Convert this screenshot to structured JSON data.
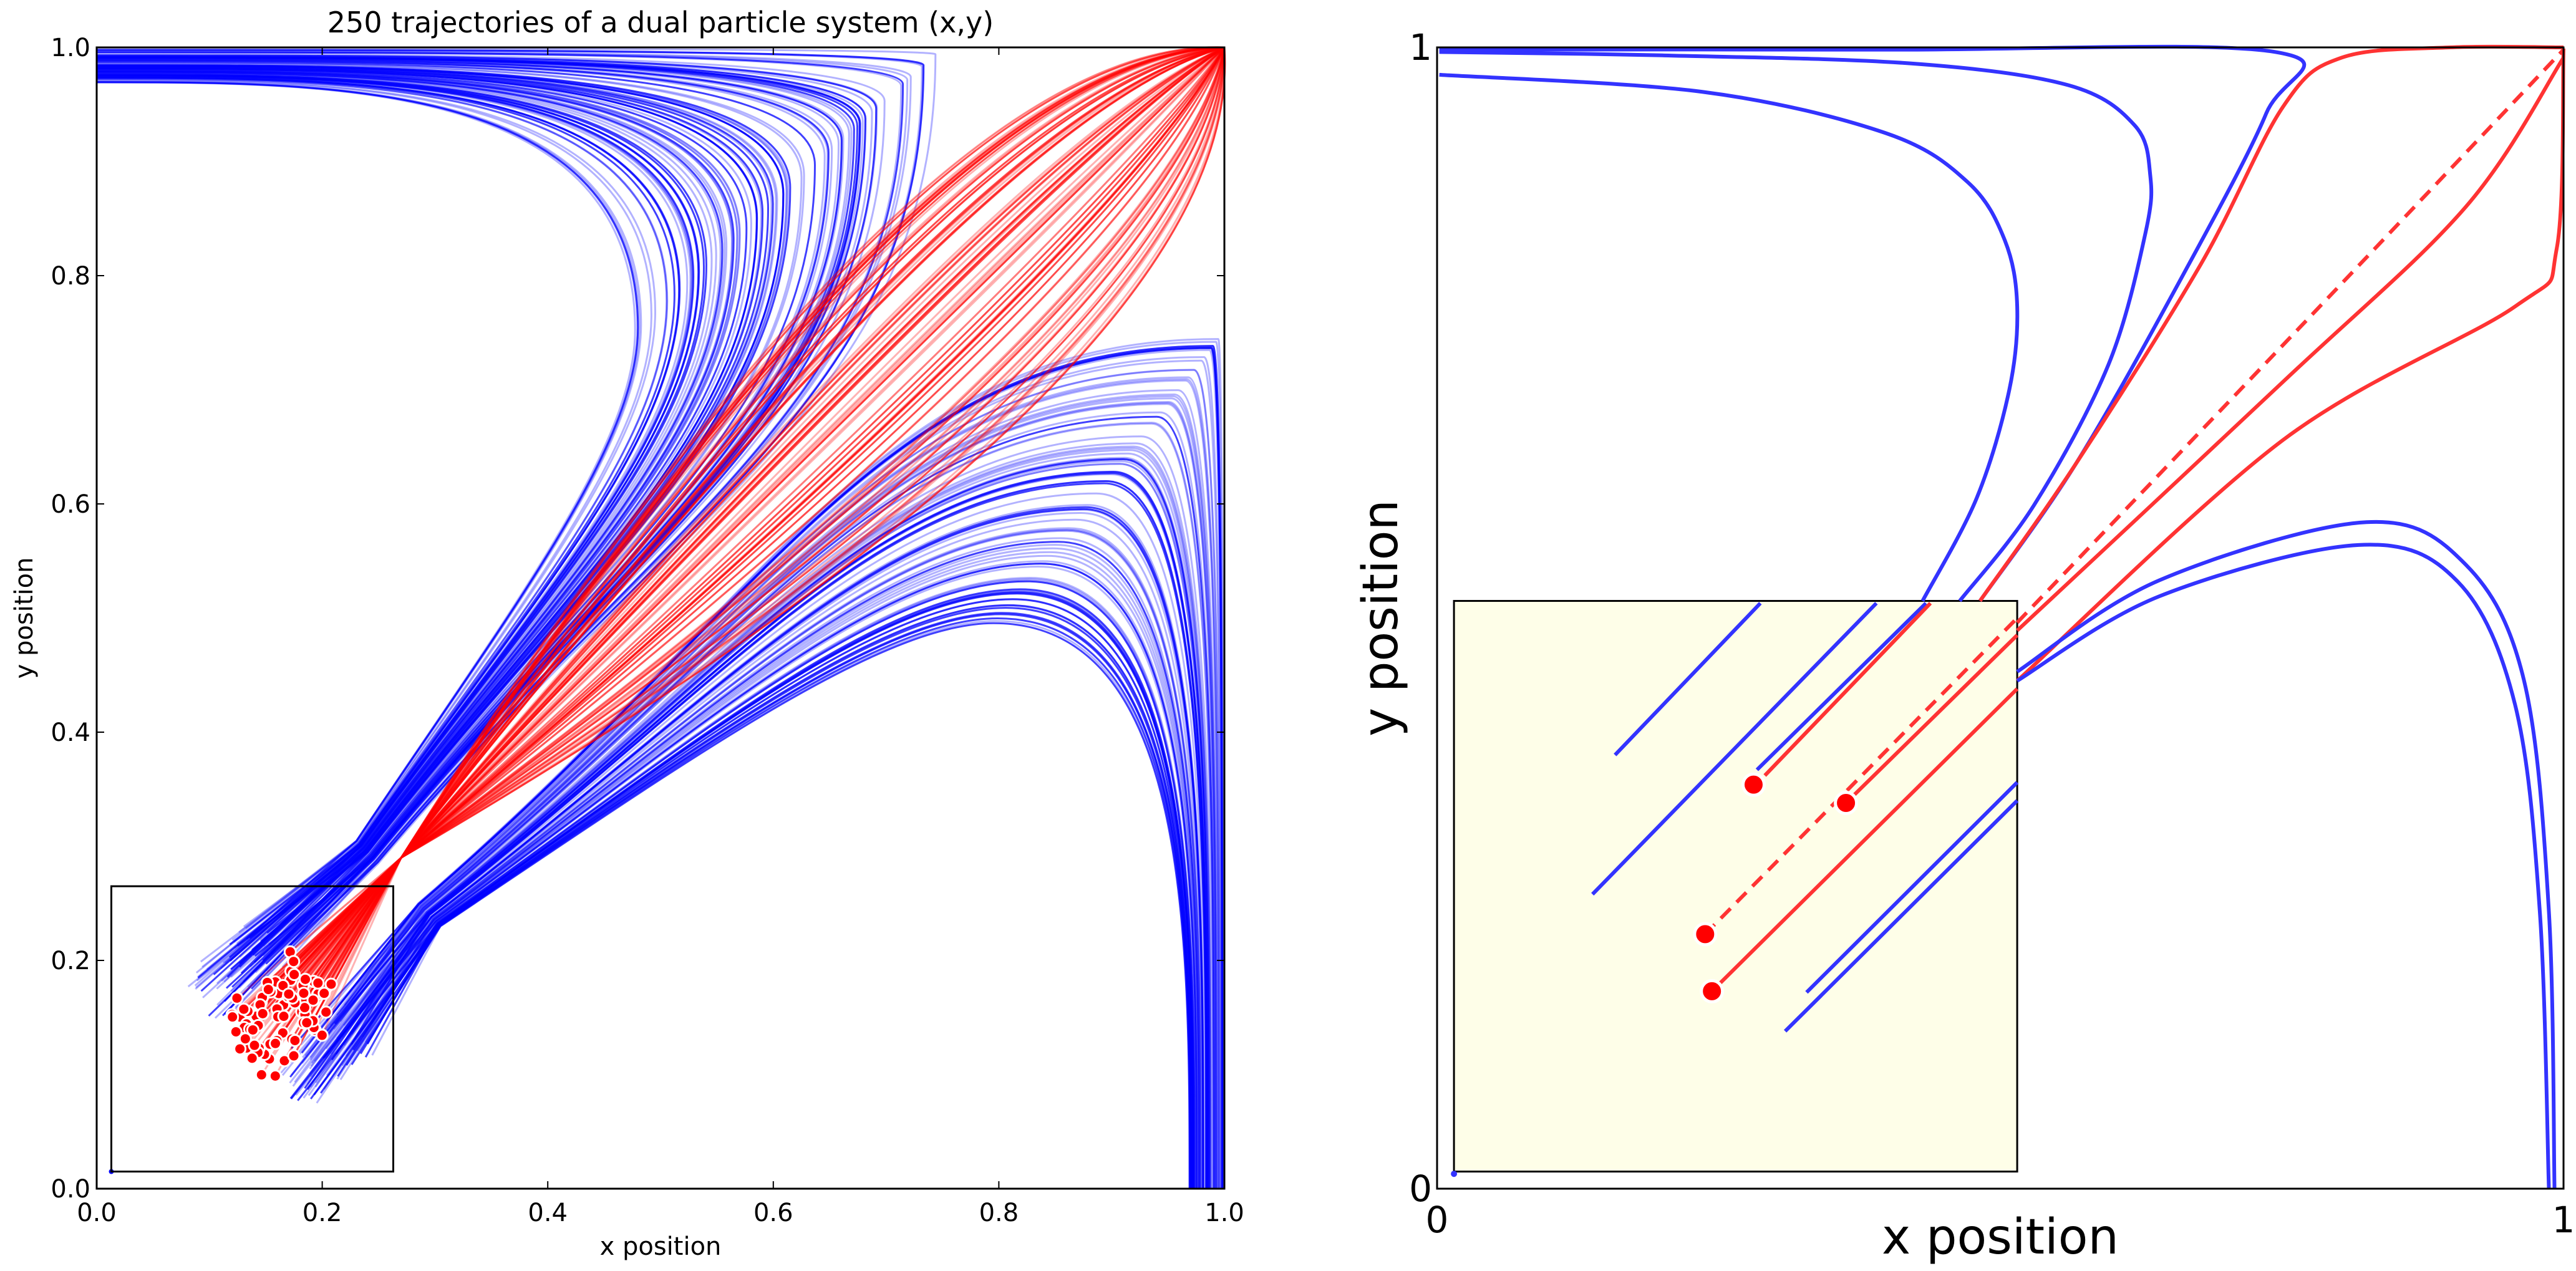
{
  "chart_data": [
    {
      "type": "line",
      "title": "250 trajectories of a dual particle system (x,y)",
      "xlabel": "x position",
      "ylabel": "y position",
      "xlim": [
        0.0,
        1.0
      ],
      "ylim": [
        0.0,
        1.0
      ],
      "xticks": [
        "0.0",
        "0.2",
        "0.4",
        "0.6",
        "0.8",
        "1.0"
      ],
      "yticks": [
        "0.0",
        "0.2",
        "0.4",
        "0.6",
        "0.8",
        "1.0"
      ],
      "grid": false,
      "n_trajectories": 250,
      "series_colors": {
        "attracted_to_corner": "#ff0000",
        "escaping": "#0000ff"
      },
      "start_marker_color": "#ff0000",
      "inset_box": {
        "x": [
          0.013,
          0.263
        ],
        "y": [
          0.015,
          0.265
        ]
      }
    },
    {
      "type": "line",
      "title": "",
      "xlabel": "x position",
      "ylabel": "y position",
      "xlim": [
        0,
        1
      ],
      "ylim": [
        0,
        1
      ],
      "xticks": [
        "0",
        "1"
      ],
      "yticks": [
        "0",
        "1"
      ],
      "grid": false,
      "inset_box": {
        "x": [
          0.015,
          0.515
        ],
        "y": [
          0.015,
          0.515
        ],
        "fill": "#fefee8"
      },
      "curves": [
        {
          "color": "#3333ff",
          "style": "solid",
          "points": [
            [
              0.431,
              0.515
            ],
            [
              0.479,
              0.605
            ],
            [
              0.508,
              0.7
            ],
            [
              0.515,
              0.773
            ],
            [
              0.504,
              0.831
            ],
            [
              0.471,
              0.882
            ],
            [
              0.398,
              0.925
            ],
            [
              0.236,
              0.961
            ],
            [
              0.002,
              0.976
            ]
          ]
        },
        {
          "color": "#3333ff",
          "style": "solid",
          "points": [
            [
              0.464,
              0.515
            ],
            [
              0.53,
              0.599
            ],
            [
              0.596,
              0.722
            ],
            [
              0.629,
              0.838
            ],
            [
              0.633,
              0.889
            ],
            [
              0.619,
              0.932
            ],
            [
              0.56,
              0.967
            ],
            [
              0.42,
              0.986
            ],
            [
              0.2,
              0.993
            ],
            [
              0.002,
              0.996
            ]
          ]
        },
        {
          "color": "#3333ff",
          "style": "solid",
          "points": [
            [
              0.482,
              0.515
            ],
            [
              0.567,
              0.635
            ],
            [
              0.663,
              0.802
            ],
            [
              0.736,
              0.942
            ],
            [
              0.744,
              0.996
            ],
            [
              0.4,
              0.998
            ],
            [
              0.002,
              0.998
            ]
          ]
        },
        {
          "color": "#ff3333",
          "style": "solid",
          "points": [
            [
              0.482,
              0.515
            ],
            [
              0.567,
              0.635
            ],
            [
              0.678,
              0.81
            ],
            [
              0.751,
              0.948
            ],
            [
              0.803,
              0.991
            ],
            [
              0.899,
              1.0
            ],
            [
              1.0,
              1.0
            ]
          ]
        },
        {
          "color": "#ff3333",
          "style": "dashed",
          "points": [
            [
              0.515,
              0.496
            ],
            [
              0.773,
              0.762
            ],
            [
              1.0,
              0.998
            ]
          ]
        },
        {
          "color": "#ff3333",
          "style": "solid",
          "points": [
            [
              0.515,
              0.489
            ],
            [
              0.751,
              0.707
            ],
            [
              0.913,
              0.86
            ],
            [
              1.0,
              0.991
            ]
          ]
        },
        {
          "color": "#ff3333",
          "style": "solid",
          "points": [
            [
              0.515,
              0.445
            ],
            [
              0.751,
              0.656
            ],
            [
              0.957,
              0.773
            ],
            [
              0.994,
              0.824
            ],
            [
              1.0,
              0.999
            ]
          ]
        },
        {
          "color": "#3333ff",
          "style": "solid",
          "points": [
            [
              0.515,
              0.453
            ],
            [
              0.641,
              0.533
            ],
            [
              0.825,
              0.584
            ],
            [
              0.913,
              0.547
            ],
            [
              0.965,
              0.445
            ],
            [
              0.987,
              0.243
            ],
            [
              0.992,
              0.0
            ]
          ]
        },
        {
          "color": "#3333ff",
          "style": "solid",
          "points": [
            [
              0.515,
              0.445
            ],
            [
              0.641,
              0.519
            ],
            [
              0.818,
              0.564
            ],
            [
              0.906,
              0.532
            ],
            [
              0.957,
              0.424
            ],
            [
              0.979,
              0.242
            ],
            [
              0.987,
              0.0
            ]
          ]
        }
      ],
      "inset_segments": [
        {
          "color": "#3333ff",
          "style": "solid",
          "points": [
            [
              0.158,
              0.38
            ],
            [
              0.287,
              0.513
            ]
          ]
        },
        {
          "color": "#3333ff",
          "style": "solid",
          "points": [
            [
              0.138,
              0.258
            ],
            [
              0.39,
              0.513
            ]
          ]
        },
        {
          "color": "#3333ff",
          "style": "solid",
          "points": [
            [
              0.284,
              0.367
            ],
            [
              0.434,
              0.513
            ]
          ]
        },
        {
          "color": "#ff3333",
          "style": "solid",
          "points": [
            [
              0.291,
              0.362
            ],
            [
              0.438,
              0.513
            ]
          ]
        },
        {
          "color": "#ff3333",
          "style": "solid",
          "points": [
            [
              0.363,
              0.338
            ],
            [
              0.515,
              0.485
            ]
          ]
        },
        {
          "color": "#ff3333",
          "style": "dashed",
          "points": [
            [
              0.238,
              0.223
            ],
            [
              0.515,
              0.5
            ]
          ]
        },
        {
          "color": "#ff3333",
          "style": "solid",
          "points": [
            [
              0.244,
              0.173
            ],
            [
              0.515,
              0.438
            ]
          ]
        },
        {
          "color": "#3333ff",
          "style": "solid",
          "points": [
            [
              0.328,
              0.172
            ],
            [
              0.515,
              0.356
            ]
          ]
        },
        {
          "color": "#3333ff",
          "style": "solid",
          "points": [
            [
              0.309,
              0.138
            ],
            [
              0.515,
              0.34
            ]
          ]
        }
      ],
      "start_points": [
        [
          0.281,
          0.354
        ],
        [
          0.363,
          0.338
        ],
        [
          0.238,
          0.223
        ],
        [
          0.244,
          0.173
        ]
      ],
      "start_marker_color": "#ff0000"
    }
  ]
}
